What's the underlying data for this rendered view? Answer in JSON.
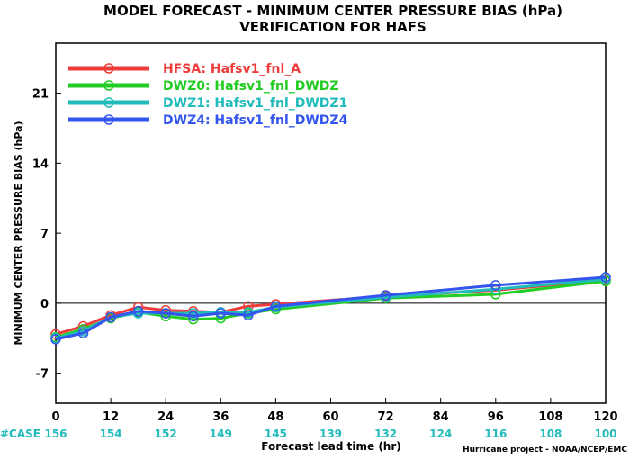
{
  "chart_data": {
    "type": "line",
    "title": "MODEL FORECAST - MINIMUM CENTER PRESSURE BIAS (hPa)",
    "subtitle": "VERIFICATION FOR HAFS",
    "xlabel": "Forecast lead time (hr)",
    "ylabel": "MINIMUM CENTER PRESSURE BIAS (hPa)",
    "xlim": [
      0,
      120
    ],
    "ylim": [
      -10,
      26
    ],
    "xticks": [
      0,
      12,
      24,
      36,
      48,
      60,
      72,
      84,
      96,
      108,
      120
    ],
    "yticks": [
      -7,
      0,
      7,
      14,
      21
    ],
    "zero_line": true,
    "grid": false,
    "legend_position": "top-left",
    "case_label": "#CASE",
    "case_counts": [
      156,
      154,
      152,
      149,
      145,
      139,
      132,
      124,
      116,
      108,
      100
    ],
    "credit": "Hurricane project - NOAA/NCEP/EMC",
    "series": [
      {
        "name": "HFSA: Hafsv1_fnl_A",
        "color": "#ee3b3b",
        "x": [
          0,
          6,
          12,
          18,
          24,
          30,
          36,
          42,
          48,
          72,
          96,
          120
        ],
        "values": [
          -3.1,
          -2.3,
          -1.2,
          -0.4,
          -0.7,
          -0.8,
          -0.9,
          -0.3,
          -0.1,
          0.7,
          1.3,
          2.3
        ]
      },
      {
        "name": "DWZ0: Hafsv1_fnl_DWDZ",
        "color": "#22cc22",
        "x": [
          0,
          6,
          12,
          18,
          24,
          30,
          36,
          42,
          48,
          72,
          96,
          120
        ],
        "values": [
          -3.4,
          -2.6,
          -1.5,
          -0.9,
          -1.3,
          -1.6,
          -1.5,
          -1.0,
          -0.6,
          0.5,
          0.9,
          2.2
        ]
      },
      {
        "name": "DWZ1: Hafsv1_fnl_DWDZ1",
        "color": "#22bbbb",
        "x": [
          0,
          6,
          12,
          18,
          24,
          30,
          36,
          42,
          48,
          72,
          96,
          120
        ],
        "values": [
          -3.5,
          -2.8,
          -1.4,
          -1.0,
          -1.0,
          -1.0,
          -0.9,
          -0.9,
          -0.4,
          0.6,
          1.4,
          2.4
        ]
      },
      {
        "name": "DWZ4: Hafsv1_fnl_DWDZ4",
        "color": "#3355ee",
        "x": [
          0,
          6,
          12,
          18,
          24,
          30,
          36,
          42,
          48,
          72,
          96,
          120
        ],
        "values": [
          -3.6,
          -3.0,
          -1.4,
          -0.8,
          -1.0,
          -1.3,
          -1.0,
          -1.2,
          -0.3,
          0.8,
          1.8,
          2.6
        ]
      }
    ]
  }
}
